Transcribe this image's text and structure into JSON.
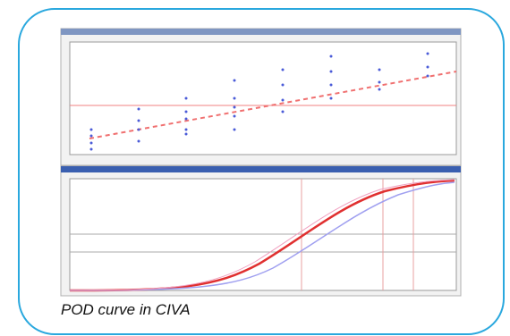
{
  "figure": {
    "caption": "POD curve in CIVA"
  }
}
